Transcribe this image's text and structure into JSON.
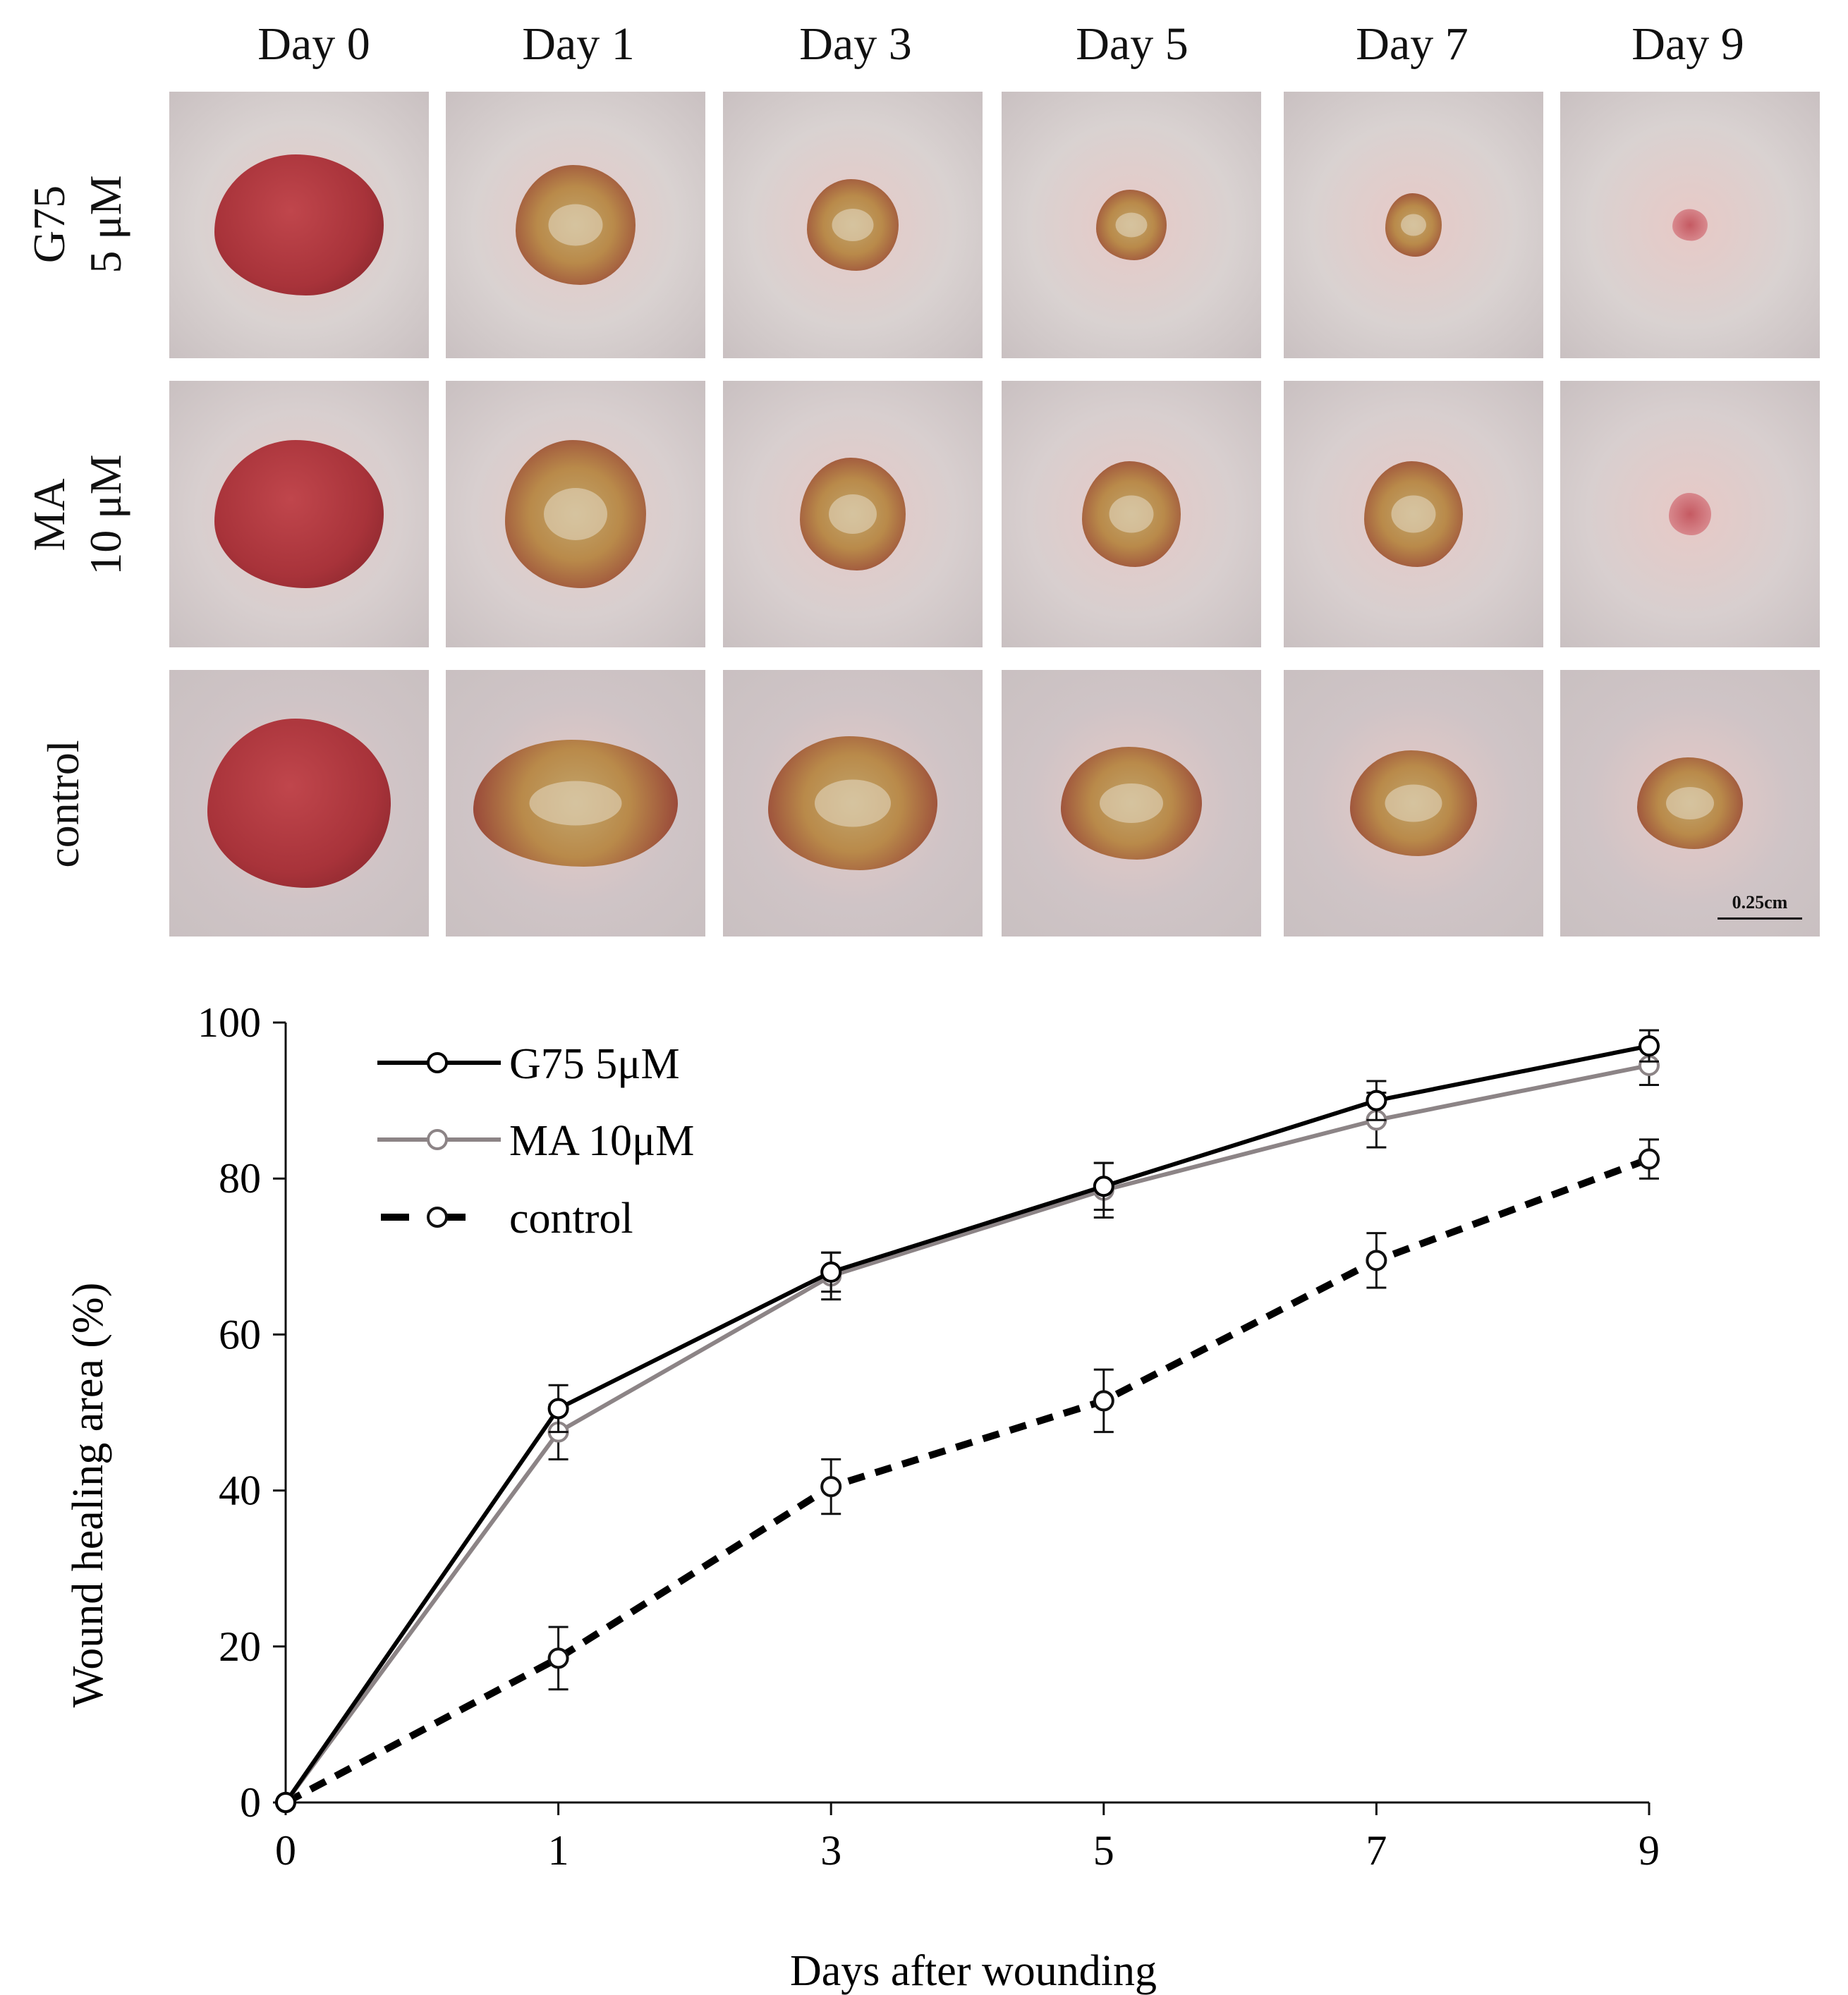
{
  "photo_grid": {
    "days": [
      "Day 0",
      "Day 1",
      "Day 3",
      "Day 5",
      "Day 7",
      "Day 9"
    ],
    "rows": [
      {
        "label_line1": "G75",
        "label_line2": "5 μM"
      },
      {
        "label_line1": "MA",
        "label_line2": "10 μM"
      },
      {
        "label_line1": "control",
        "label_line2": ""
      }
    ],
    "scale_bar": "0.25cm",
    "colors": {
      "skin": "#d9cfcf",
      "wound_fresh": "#a8333a",
      "scab": "#b98a4a",
      "healed": "#d7878c"
    }
  },
  "chart_data": {
    "type": "line",
    "x": [
      0,
      1,
      3,
      5,
      7,
      9
    ],
    "x_tick_labels": [
      "0",
      "1",
      "3",
      "5",
      "7",
      "9"
    ],
    "xlabel": "Days after wounding",
    "ylabel": "Wound healing area (%)",
    "ylim": [
      0,
      100
    ],
    "y_ticks": [
      0,
      20,
      40,
      60,
      80,
      100
    ],
    "grid": false,
    "legend_position": "top-left",
    "series": [
      {
        "name": "G75 5μM",
        "values": [
          0,
          50.5,
          68,
          79,
          90,
          97
        ],
        "errors": [
          0,
          3,
          2.5,
          3,
          2.5,
          2
        ],
        "color": "#000000",
        "style": "solid"
      },
      {
        "name": "MA 10μM",
        "values": [
          0,
          47.5,
          67.5,
          78.5,
          87.5,
          94.5
        ],
        "errors": [
          0,
          3.5,
          3,
          3.5,
          3.5,
          2.5
        ],
        "color": "#8c8486",
        "style": "solid"
      },
      {
        "name": "control",
        "values": [
          0,
          18.5,
          40.5,
          51.5,
          69.5,
          82.5
        ],
        "errors": [
          0,
          4,
          3.5,
          4,
          3.5,
          2.5
        ],
        "color": "#000000",
        "style": "dashed"
      }
    ]
  }
}
